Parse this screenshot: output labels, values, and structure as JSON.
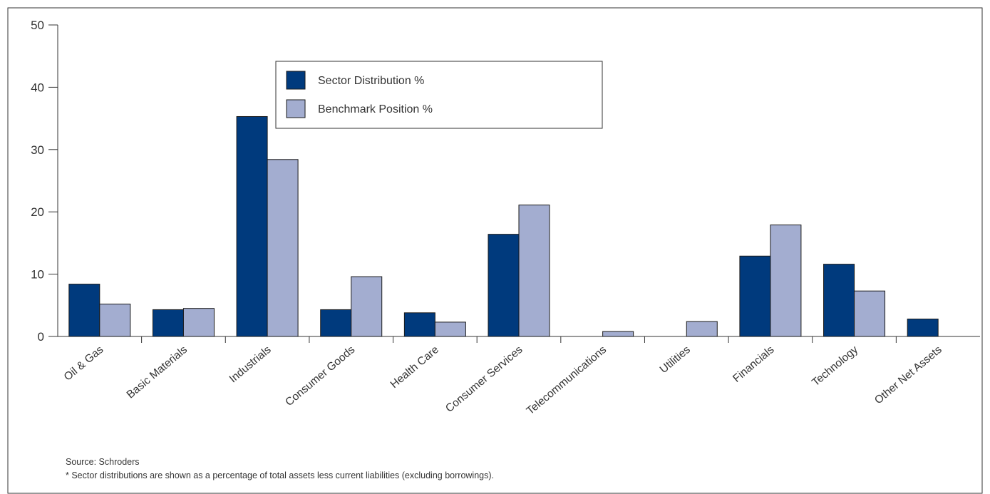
{
  "chart_data": {
    "type": "bar",
    "categories": [
      "Oil & Gas",
      "Basic Materials",
      "Industrials",
      "Consumer Goods",
      "Health Care",
      "Consumer Services",
      "Telecommunications",
      "Utilities",
      "Financials",
      "Technology",
      "Other Net Assets"
    ],
    "series": [
      {
        "name": "Sector Distribution %",
        "color": "#003a7d",
        "values": [
          8.4,
          4.3,
          35.3,
          4.3,
          3.8,
          16.4,
          0,
          0,
          12.9,
          11.6,
          2.8
        ]
      },
      {
        "name": "Benchmark Position %",
        "color": "#a3add0",
        "values": [
          5.2,
          4.5,
          28.4,
          9.6,
          2.3,
          21.1,
          0.8,
          2.4,
          17.9,
          7.3,
          0
        ]
      }
    ],
    "ylim": [
      0,
      50
    ],
    "yticks": [
      0,
      10,
      20,
      30,
      40,
      50
    ],
    "grid": false,
    "legend_position": "top-center"
  },
  "footnotes": {
    "source": "Source: Schroders",
    "note": "* Sector distributions are shown as a percentage of total assets less current liabilities (excluding borrowings)."
  }
}
